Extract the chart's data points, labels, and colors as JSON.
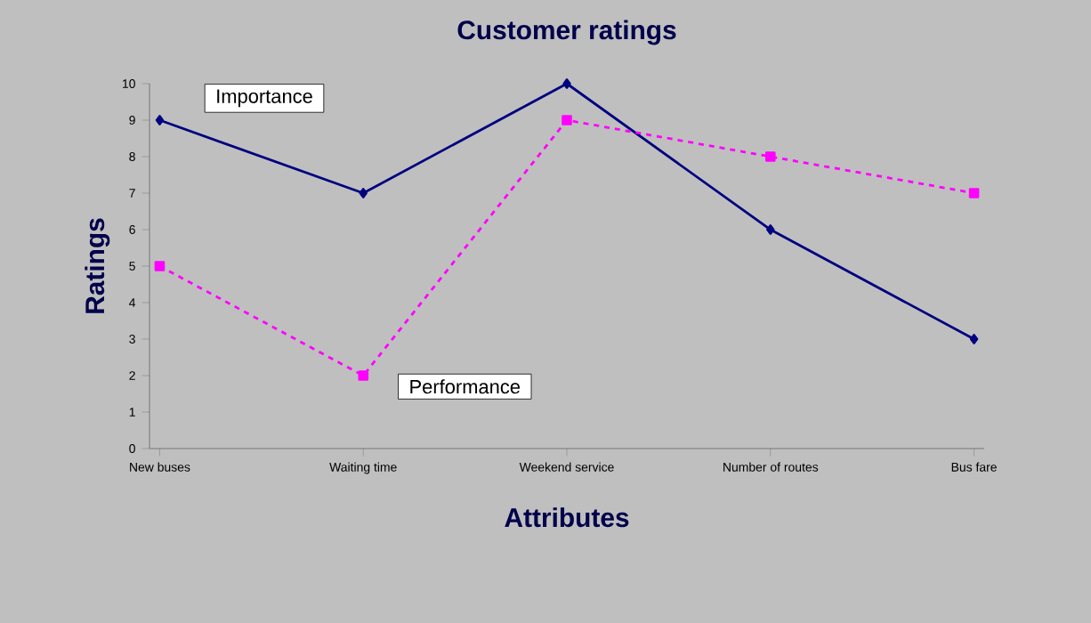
{
  "chart_data": {
    "type": "line",
    "title": "Customer ratings",
    "xlabel": "Attributes",
    "ylabel": "Ratings",
    "categories": [
      "New buses",
      "Waiting time",
      "Weekend service",
      "Number of routes",
      "Bus fare"
    ],
    "series": [
      {
        "name": "Importance",
        "color": "#000080",
        "values": [
          9,
          7,
          10,
          6,
          3
        ],
        "marker": "diamond",
        "line_style": "solid"
      },
      {
        "name": "Performance",
        "color": "#ff00ff",
        "values": [
          5,
          2,
          9,
          8,
          7
        ],
        "marker": "square",
        "line_style": "dashed"
      }
    ],
    "ylim": [
      0,
      10
    ],
    "yticks": [
      0,
      1,
      2,
      3,
      4,
      5,
      6,
      7,
      8,
      9,
      10
    ],
    "legend": false
  }
}
